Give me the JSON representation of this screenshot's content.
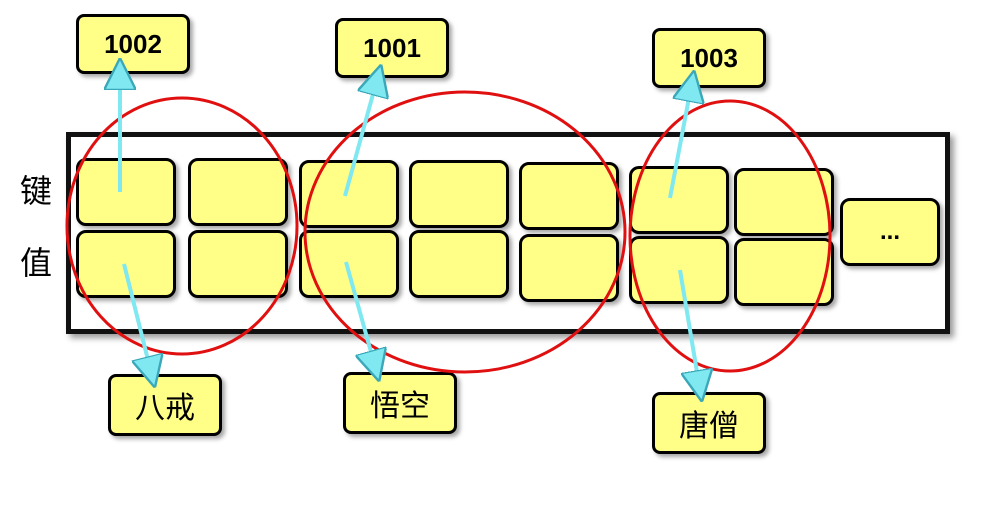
{
  "labels": {
    "key": "键",
    "value": "值"
  },
  "ellipsis": "...",
  "groups": [
    {
      "id": "1002",
      "value": "八戒"
    },
    {
      "id": "1001",
      "value": "悟空"
    },
    {
      "id": "1003",
      "value": "唐僧"
    }
  ],
  "colors": {
    "cell_fill": "#ffff88",
    "circle": "#e01010",
    "arrow": "#7fe8f0",
    "border": "#000000"
  }
}
